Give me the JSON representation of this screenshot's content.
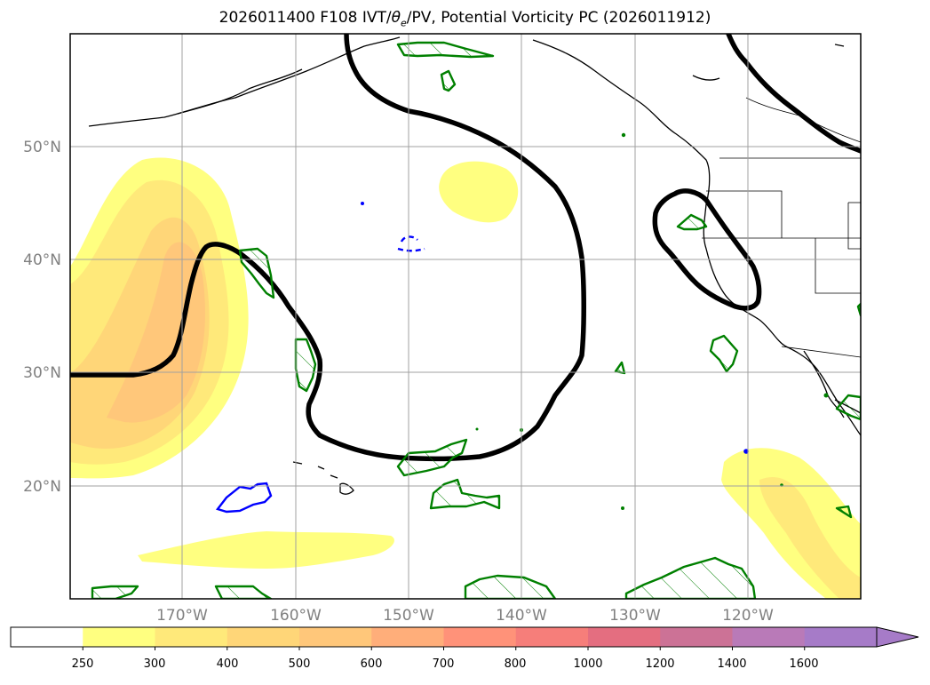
{
  "header": {
    "title_pre": "2026011400 F108 IVT/",
    "title_theta": "θ",
    "title_sub": "e",
    "title_post": "/PV, Potential Vorticity PC (2026011912)"
  },
  "map": {
    "lat_labels": [
      "50°N",
      "40°N",
      "30°N",
      "20°N"
    ],
    "lon_labels": [
      "170°W",
      "160°W",
      "150°W",
      "140°W",
      "130°W",
      "120°W"
    ],
    "grid": true
  },
  "colorbar": {
    "tick_labels": [
      "250",
      "300",
      "400",
      "500",
      "600",
      "700",
      "800",
      "1000",
      "1200",
      "1400",
      "1600"
    ],
    "colors": [
      "#ffffff",
      "#ffff80",
      "#ffe97a",
      "#ffd678",
      "#ffc77a",
      "#ffae7a",
      "#ff9279",
      "#f67e7a",
      "#e46e80",
      "#cc7296",
      "#b97ab8",
      "#a67bc8"
    ],
    "extend": "max"
  },
  "legend_colors": {
    "contour": "#000000",
    "pv_positive": "#008000",
    "pv_negative": "#0000ff"
  }
}
